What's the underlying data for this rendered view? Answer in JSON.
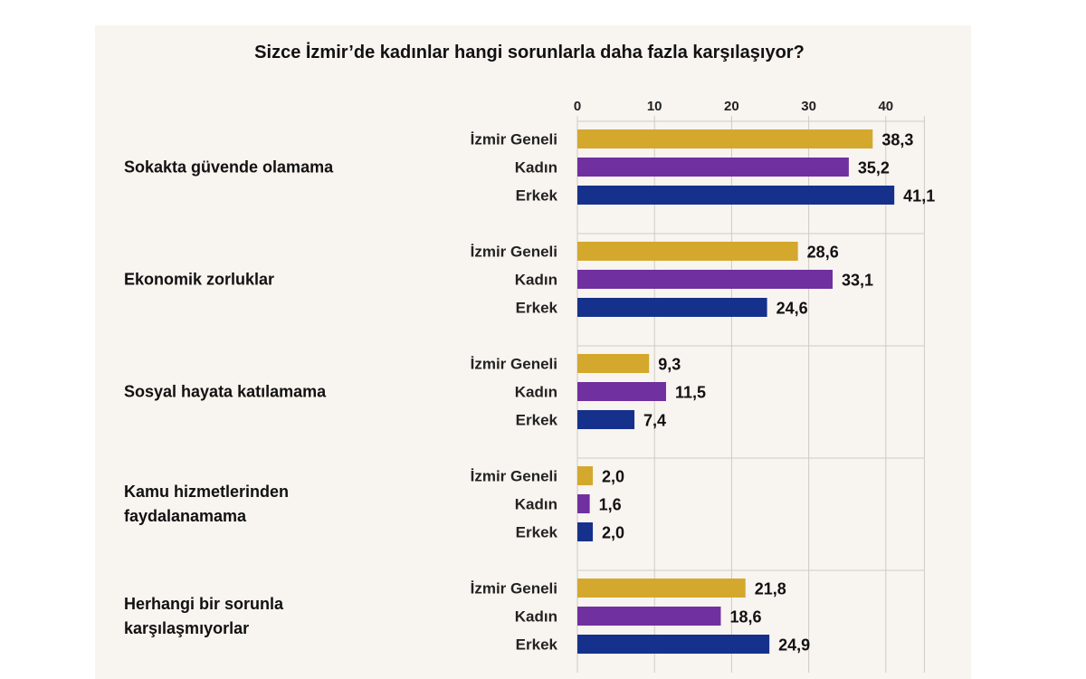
{
  "chart_data": {
    "type": "bar",
    "orientation": "horizontal",
    "title": "Sizce İzmir’de kadınlar hangi sorunlarla daha fazla karşılaşıyor?",
    "xlim": [
      0,
      45
    ],
    "ticks": [
      0,
      10,
      20,
      30,
      40
    ],
    "tick_labels": [
      "0",
      "10",
      "20",
      "30",
      "40"
    ],
    "axis_position": "top",
    "grid": true,
    "categories": [
      [
        "Sokakta güvende olamama"
      ],
      [
        "Ekonomik zorluklar"
      ],
      [
        "Sosyal hayata katılamama"
      ],
      [
        "Kamu hizmetlerinden",
        "faydalanamama"
      ],
      [
        "Herhangi bir sorunla",
        "karşılaşmıyorlar"
      ]
    ],
    "series": [
      {
        "name": "İzmir Geneli",
        "color": "#d4a82c",
        "values": [
          38.3,
          28.6,
          9.3,
          2.0,
          21.8
        ],
        "labels": [
          "38,3",
          "28,6",
          "9,3",
          "2,0",
          "21,8"
        ]
      },
      {
        "name": "Kadın",
        "color": "#7030a0",
        "values": [
          35.2,
          33.1,
          11.5,
          1.6,
          18.6
        ],
        "labels": [
          "35,2",
          "33,1",
          "11,5",
          "1,6",
          "18,6"
        ]
      },
      {
        "name": "Erkek",
        "color": "#15318c",
        "values": [
          41.1,
          24.6,
          7.4,
          2.0,
          24.9
        ],
        "labels": [
          "41,1",
          "24,6",
          "7,4",
          "2,0",
          "24,9"
        ]
      }
    ]
  }
}
